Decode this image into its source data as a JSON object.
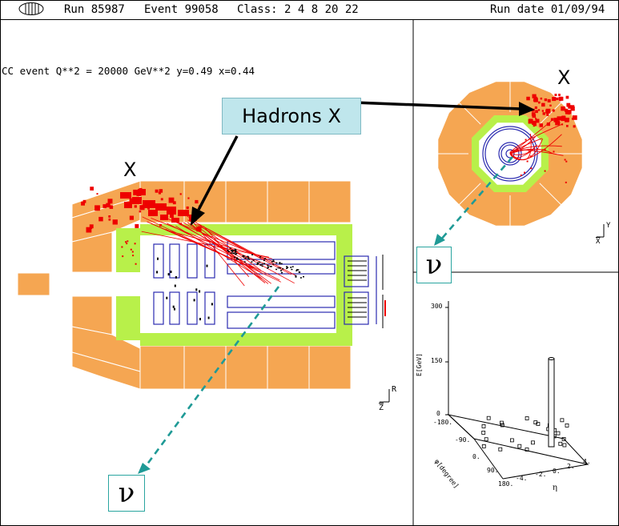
{
  "header": {
    "run": "Run 85987",
    "event": "Event 99058",
    "class": "Class: 2 4 8 20 22",
    "run_date": "Run date 01/09/94"
  },
  "event_info": "CC event Q**2 = 20000 GeV**2  y=0.49 x=0.44",
  "annotations": {
    "hadrons_label": "Hadrons X",
    "x_label_side": "X",
    "x_label_end": "X",
    "nu_side": "ν",
    "nu_end": "ν"
  },
  "axes": {
    "side_r": "R",
    "side_z": "Z",
    "end_y": "Y",
    "end_x": "X"
  },
  "lego_plot": {
    "zlabel": "E[GeV]",
    "z_ticks": [
      "300",
      "150",
      "0"
    ],
    "phi_label": "φ[degree]",
    "phi_ticks": [
      "-180.",
      "-90.",
      "0.",
      "90.",
      "180."
    ],
    "eta_label": "η",
    "eta_ticks": [
      "-4.",
      "-2.",
      "0.",
      "2.",
      "4."
    ]
  },
  "colors": {
    "calorimeter_outer": "#f5a652",
    "calorimeter_inner": "#b8f04a",
    "tracks": "#ee0000",
    "chambers": "#2b2bb0",
    "arrow_teal": "#1f9a96"
  }
}
